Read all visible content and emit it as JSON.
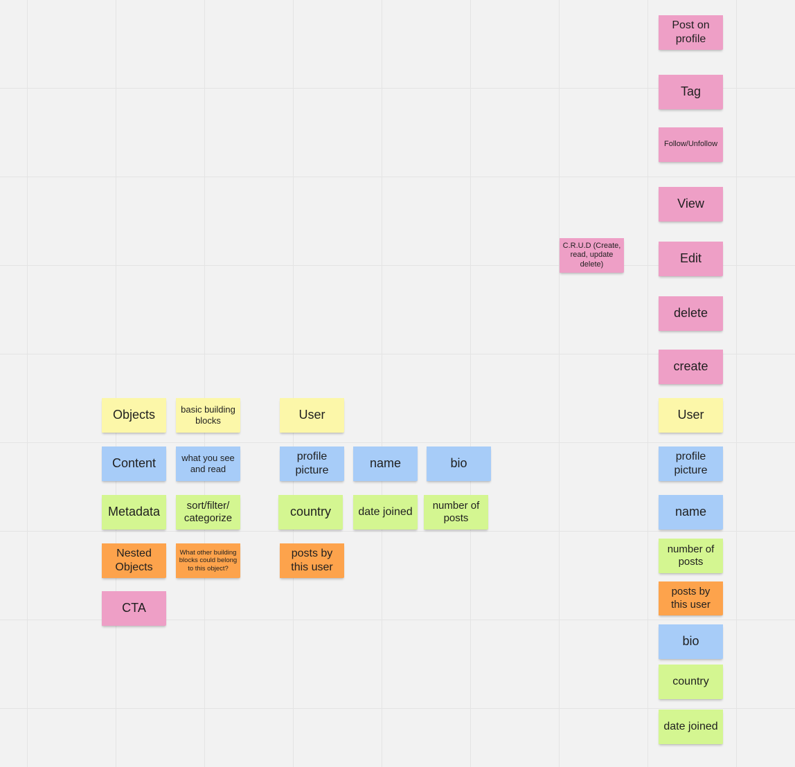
{
  "board": {
    "notes": {
      "post_on_profile": "Post on profile",
      "tag": "Tag",
      "follow_unfollow": "Follow/Unfollow",
      "view": "View",
      "edit": "Edit",
      "crud": "C.R.U.D (Create, read, update delete)",
      "delete": "delete",
      "create": "create",
      "objects": "Objects",
      "basic_building_blocks": "basic building blocks",
      "user_1": "User",
      "user_2": "User",
      "content": "Content",
      "what_you_see": "what you see and read",
      "profile_picture_1": "profile picture",
      "name_1": "name",
      "bio_1": "bio",
      "profile_picture_2": "profile picture",
      "metadata": "Metadata",
      "sort_filter": "sort/filter/ categorize",
      "country_1": "country",
      "date_joined_1": "date joined",
      "number_of_posts_1": "number of posts",
      "name_2": "name",
      "nested_objects": "Nested Objects",
      "what_other_blocks": "What other building blocks could belong to this object?",
      "posts_by_user_1": "posts by this user",
      "number_of_posts_2": "number of posts",
      "cta": "CTA",
      "posts_by_user_2": "posts by this user",
      "bio_2": "bio",
      "country_2": "country",
      "date_joined_2": "date joined"
    },
    "colors": {
      "yellow": "#fcf7a9",
      "blue": "#a7ccf8",
      "green": "#d4f691",
      "orange": "#fda34c",
      "pink": "#ee9fc6",
      "canvas": "#f2f2f2",
      "grid": "#e4e4e4"
    }
  }
}
